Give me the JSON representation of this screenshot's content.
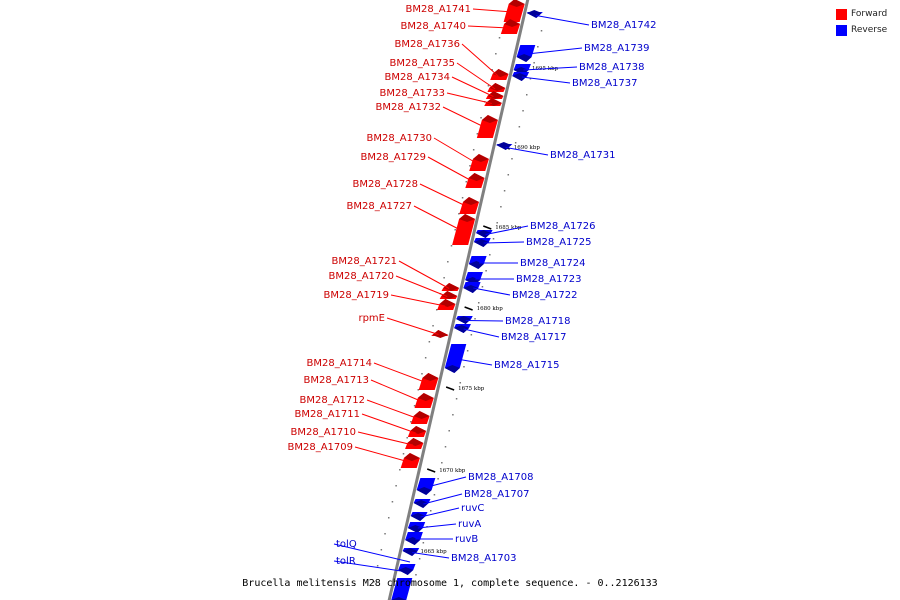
{
  "title": "Brucella melitensis M28 chromosome 1, complete sequence. - 0..2126133",
  "legend": [
    {
      "label": "Forward",
      "color": "#ff0000"
    },
    {
      "label": "Reverse",
      "color": "#0000ff"
    }
  ],
  "colors": {
    "forward": "#ff0000",
    "reverse": "#0000ff",
    "backbone": "#808080",
    "forward_label": "#cc0000",
    "reverse_label": "#0000cc"
  },
  "ticks": [
    "1695 kbp",
    "1690 kbp",
    "1685 kbp",
    "1680 kbp",
    "1675 kbp",
    "1670 kbp",
    "1665 kbp"
  ],
  "genes": [
    {
      "name": "BM28_A1741",
      "strand": "forward"
    },
    {
      "name": "BM28_A1740",
      "strand": "forward"
    },
    {
      "name": "BM28_A1736",
      "strand": "forward"
    },
    {
      "name": "BM28_A1735",
      "strand": "forward"
    },
    {
      "name": "BM28_A1734",
      "strand": "forward"
    },
    {
      "name": "BM28_A1733",
      "strand": "forward"
    },
    {
      "name": "BM28_A1732",
      "strand": "forward"
    },
    {
      "name": "BM28_A1730",
      "strand": "forward"
    },
    {
      "name": "BM28_A1729",
      "strand": "forward"
    },
    {
      "name": "BM28_A1728",
      "strand": "forward"
    },
    {
      "name": "BM28_A1727",
      "strand": "forward"
    },
    {
      "name": "BM28_A1721",
      "strand": "forward"
    },
    {
      "name": "BM28_A1720",
      "strand": "forward"
    },
    {
      "name": "BM28_A1719",
      "strand": "forward"
    },
    {
      "name": "rpmE",
      "strand": "forward"
    },
    {
      "name": "BM28_A1714",
      "strand": "forward"
    },
    {
      "name": "BM28_A1713",
      "strand": "forward"
    },
    {
      "name": "BM28_A1712",
      "strand": "forward"
    },
    {
      "name": "BM28_A1711",
      "strand": "forward"
    },
    {
      "name": "BM28_A1710",
      "strand": "forward"
    },
    {
      "name": "BM28_A1709",
      "strand": "forward"
    },
    {
      "name": "tolQ",
      "strand": "reverse"
    },
    {
      "name": "tolR",
      "strand": "reverse"
    },
    {
      "name": "BM28_A1742",
      "strand": "reverse"
    },
    {
      "name": "BM28_A1739",
      "strand": "reverse"
    },
    {
      "name": "BM28_A1738",
      "strand": "reverse"
    },
    {
      "name": "BM28_A1737",
      "strand": "reverse"
    },
    {
      "name": "BM28_A1731",
      "strand": "reverse"
    },
    {
      "name": "BM28_A1726",
      "strand": "reverse"
    },
    {
      "name": "BM28_A1725",
      "strand": "reverse"
    },
    {
      "name": "BM28_A1724",
      "strand": "reverse"
    },
    {
      "name": "BM28_A1723",
      "strand": "reverse"
    },
    {
      "name": "BM28_A1722",
      "strand": "reverse"
    },
    {
      "name": "BM28_A1718",
      "strand": "reverse"
    },
    {
      "name": "BM28_A1717",
      "strand": "reverse"
    },
    {
      "name": "BM28_A1715",
      "strand": "reverse"
    },
    {
      "name": "BM28_A1708",
      "strand": "reverse"
    },
    {
      "name": "BM28_A1707",
      "strand": "reverse"
    },
    {
      "name": "ruvC",
      "strand": "reverse"
    },
    {
      "name": "ruvA",
      "strand": "reverse"
    },
    {
      "name": "ruvB",
      "strand": "reverse"
    },
    {
      "name": "BM28_A1703",
      "strand": "reverse"
    }
  ]
}
